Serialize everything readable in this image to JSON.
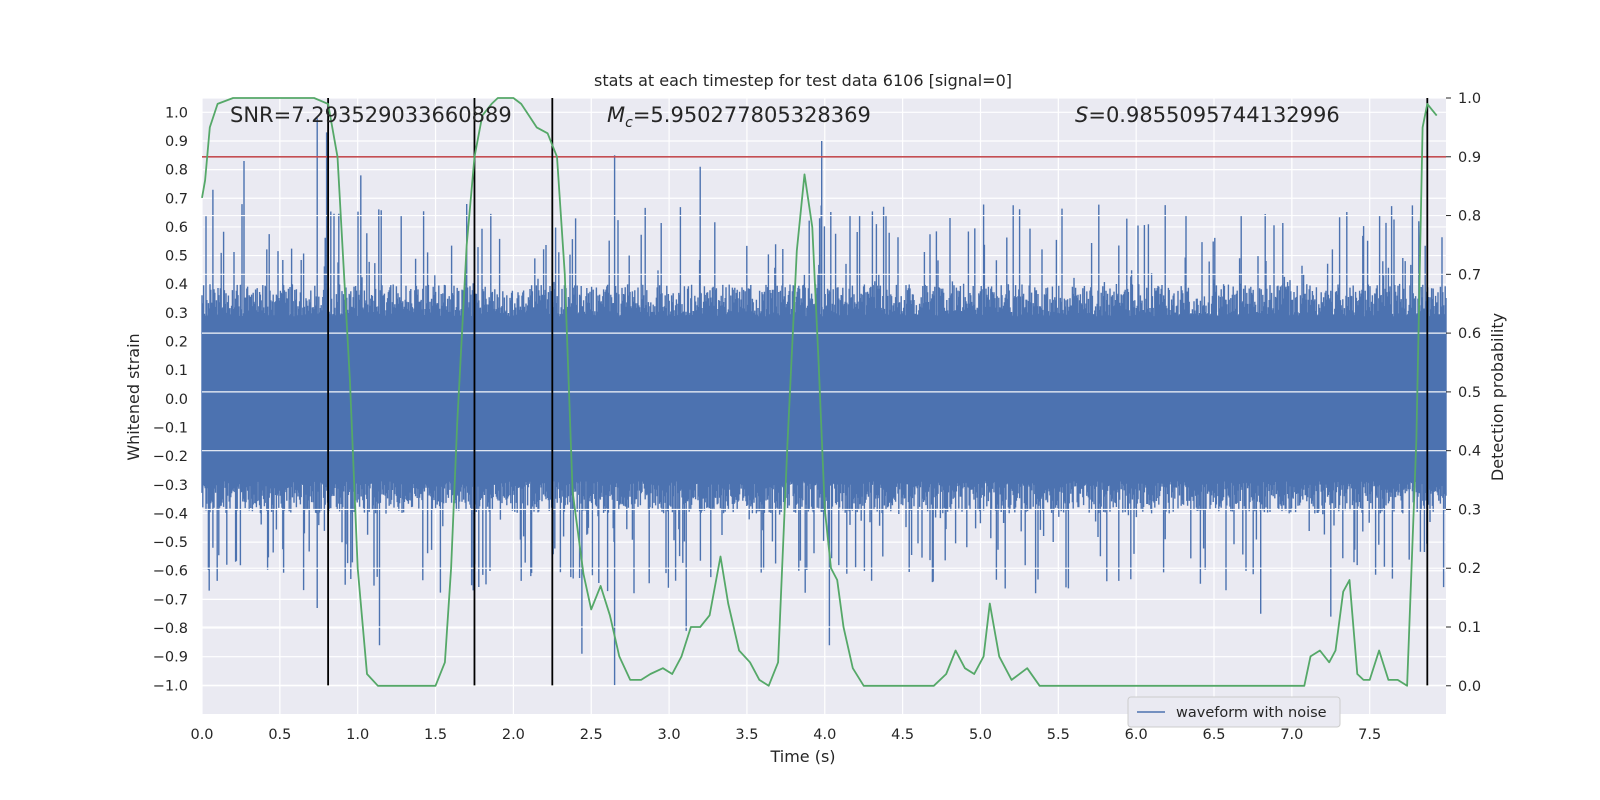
{
  "chart_data": {
    "type": "line",
    "title": "stats at each timestep for test data 6106 [signal=0]",
    "xlabel": "Time (s)",
    "ylabel_left": "Whitened strain",
    "ylabel_right": "Detection probability",
    "xlim": [
      0.0,
      7.99
    ],
    "ylim_left": [
      -1.1,
      1.05
    ],
    "ylim_right": [
      -0.048,
      1.0
    ],
    "x_ticks": [
      "0.0",
      "0.5",
      "1.0",
      "1.5",
      "2.0",
      "2.5",
      "3.0",
      "3.5",
      "4.0",
      "4.5",
      "5.0",
      "5.5",
      "6.0",
      "6.5",
      "7.0",
      "7.5"
    ],
    "left_ticks": [
      "-1.0",
      "-0.9",
      "-0.8",
      "-0.7",
      "-0.6",
      "-0.5",
      "-0.4",
      "-0.3",
      "-0.2",
      "-0.1",
      "0.0",
      "0.1",
      "0.2",
      "0.3",
      "0.4",
      "0.5",
      "0.6",
      "0.7",
      "0.8",
      "0.9",
      "1.0"
    ],
    "right_ticks": [
      "0.0",
      "0.1",
      "0.2",
      "0.3",
      "0.4",
      "0.5",
      "0.6",
      "0.7",
      "0.8",
      "0.9",
      "1.0"
    ],
    "grid": true,
    "legend_position": "lower-right",
    "annotations": {
      "snr": "SNR=7.293529033660889",
      "mc_value": "=5.950277805328369",
      "s_value": "=0.9855095744132996"
    },
    "threshold_line": {
      "axis": "right",
      "value": 0.9
    },
    "vertical_lines_x": [
      0.81,
      1.75,
      2.25,
      7.87
    ],
    "series": [
      {
        "name": "waveform with noise",
        "axis": "left",
        "color": "#4c72b0",
        "render": "noise_band",
        "core_amplitude": 0.4,
        "spike_peaks": [
          {
            "x": 0.07,
            "y": 0.73
          },
          {
            "x": 0.27,
            "y": 0.83
          },
          {
            "x": 0.74,
            "y": 0.98
          },
          {
            "x": 0.8,
            "y": 0.93
          },
          {
            "x": 1.02,
            "y": 0.78
          },
          {
            "x": 1.7,
            "y": 0.68
          },
          {
            "x": 2.65,
            "y": 0.85
          },
          {
            "x": 3.2,
            "y": 0.81
          },
          {
            "x": 3.98,
            "y": 0.9
          },
          {
            "x": 7.87,
            "y": 0.78
          }
        ],
        "spike_troughs": [
          {
            "x": 0.07,
            "y": -0.52
          },
          {
            "x": 0.74,
            "y": -0.73
          },
          {
            "x": 1.14,
            "y": -0.86
          },
          {
            "x": 2.44,
            "y": -0.89
          },
          {
            "x": 2.65,
            "y": -1.0
          },
          {
            "x": 3.11,
            "y": -0.81
          },
          {
            "x": 4.03,
            "y": -0.86
          },
          {
            "x": 6.8,
            "y": -0.75
          },
          {
            "x": 7.25,
            "y": -0.76
          }
        ]
      },
      {
        "name": "detection probability",
        "axis": "right",
        "color": "#55a868",
        "x": [
          0.0,
          0.02,
          0.05,
          0.1,
          0.2,
          0.4,
          0.6,
          0.72,
          0.81,
          0.87,
          0.95,
          1.0,
          1.06,
          1.13,
          1.2,
          1.3,
          1.5,
          1.56,
          1.6,
          1.64,
          1.7,
          1.75,
          1.8,
          1.86,
          1.9,
          1.95,
          2.0,
          2.05,
          2.1,
          2.15,
          2.22,
          2.28,
          2.33,
          2.38,
          2.45,
          2.5,
          2.56,
          2.62,
          2.68,
          2.75,
          2.82,
          2.88,
          2.96,
          3.02,
          3.08,
          3.14,
          3.2,
          3.26,
          3.33,
          3.38,
          3.45,
          3.52,
          3.58,
          3.64,
          3.7,
          3.76,
          3.82,
          3.87,
          3.92,
          3.96,
          4.0,
          4.04,
          4.08,
          4.12,
          4.18,
          4.25,
          4.3,
          4.45,
          4.6,
          4.7,
          4.78,
          4.84,
          4.9,
          4.96,
          5.02,
          5.06,
          5.12,
          5.2,
          5.3,
          5.38,
          5.42,
          5.6,
          5.8,
          5.9,
          6.0,
          6.2,
          6.3,
          6.4,
          6.6,
          6.8,
          6.9,
          7.0,
          7.08,
          7.12,
          7.18,
          7.24,
          7.28,
          7.33,
          7.37,
          7.42,
          7.46,
          7.5,
          7.56,
          7.62,
          7.68,
          7.74,
          7.8,
          7.84,
          7.87,
          7.9,
          7.93
        ],
        "y": [
          0.83,
          0.86,
          0.95,
          0.99,
          1.0,
          1.0,
          1.0,
          1.0,
          0.99,
          0.9,
          0.52,
          0.2,
          0.02,
          0.0,
          0.0,
          0.0,
          0.0,
          0.04,
          0.2,
          0.45,
          0.75,
          0.9,
          0.97,
          0.99,
          1.0,
          1.0,
          1.0,
          0.99,
          0.97,
          0.95,
          0.94,
          0.9,
          0.7,
          0.33,
          0.19,
          0.13,
          0.17,
          0.12,
          0.05,
          0.01,
          0.01,
          0.02,
          0.03,
          0.02,
          0.05,
          0.1,
          0.1,
          0.12,
          0.22,
          0.14,
          0.06,
          0.04,
          0.01,
          0.0,
          0.04,
          0.41,
          0.74,
          0.87,
          0.78,
          0.55,
          0.3,
          0.2,
          0.18,
          0.1,
          0.03,
          0.0,
          0.0,
          0.0,
          0.0,
          0.0,
          0.02,
          0.06,
          0.03,
          0.02,
          0.05,
          0.14,
          0.05,
          0.01,
          0.03,
          0.0,
          0.0,
          0.0,
          0.0,
          0.0,
          0.0,
          0.0,
          0.0,
          0.0,
          0.0,
          0.0,
          0.0,
          0.0,
          0.0,
          0.05,
          0.06,
          0.04,
          0.06,
          0.16,
          0.18,
          0.02,
          0.01,
          0.01,
          0.06,
          0.01,
          0.01,
          0.0,
          0.42,
          0.95,
          0.99,
          0.98,
          0.97
        ]
      }
    ]
  }
}
